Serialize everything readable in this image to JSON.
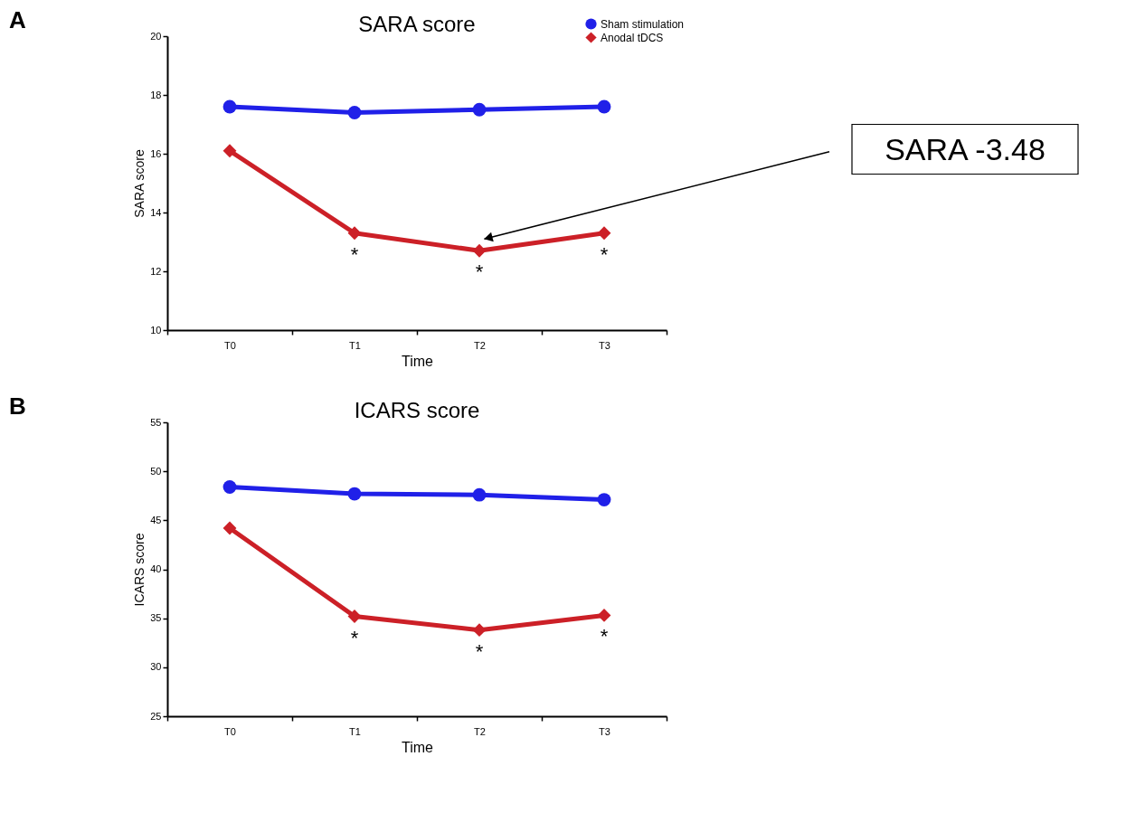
{
  "chart_data": [
    {
      "type": "line",
      "title": "SARA score",
      "xlabel": "Time",
      "ylabel": "SARA score",
      "categories": [
        "T0",
        "T1",
        "T2",
        "T3"
      ],
      "series": [
        {
          "name": "Sham stimulation",
          "color": "#2020e8",
          "marker": "circle",
          "values": [
            17.6,
            17.4,
            17.5,
            17.6
          ]
        },
        {
          "name": "Anodal tDCS",
          "color": "#cc2027",
          "marker": "diamond",
          "values": [
            16.1,
            13.3,
            12.7,
            13.3
          ]
        }
      ],
      "ylim": [
        10,
        20
      ],
      "yticks": [
        10,
        12,
        14,
        16,
        18,
        20
      ],
      "grid": false,
      "legend": "top right",
      "line_style": "solid",
      "annotations": [
        "A",
        {
          "text": "*",
          "x": "T1",
          "y": 13.3
        },
        {
          "text": "*",
          "x": "T2",
          "y": 12.7
        },
        {
          "text": "*",
          "x": "T3",
          "y": 13.3
        },
        "SARA -3.48"
      ]
    },
    {
      "type": "line",
      "title": "ICARS score",
      "xlabel": "Time",
      "ylabel": "ICARS score",
      "categories": [
        "T0",
        "T1",
        "T2",
        "T3"
      ],
      "series": [
        {
          "color": "#2020e8",
          "marker": "circle",
          "values": [
            48.4,
            47.7,
            47.6,
            47.1
          ]
        },
        {
          "color": "#cc2027",
          "marker": "diamond",
          "values": [
            44.2,
            35.2,
            33.8,
            35.3
          ]
        }
      ],
      "ylim": [
        25,
        55
      ],
      "yticks": [
        25,
        30,
        35,
        40,
        45,
        50,
        55
      ],
      "grid": false,
      "legend": false,
      "line_style": "solid",
      "annotations": [
        "B",
        {
          "text": "*",
          "x": "T1",
          "y": 35.2
        },
        {
          "text": "*",
          "x": "T2",
          "y": 33.8
        },
        {
          "text": "*",
          "x": "T3",
          "y": 35.3
        }
      ]
    }
  ]
}
